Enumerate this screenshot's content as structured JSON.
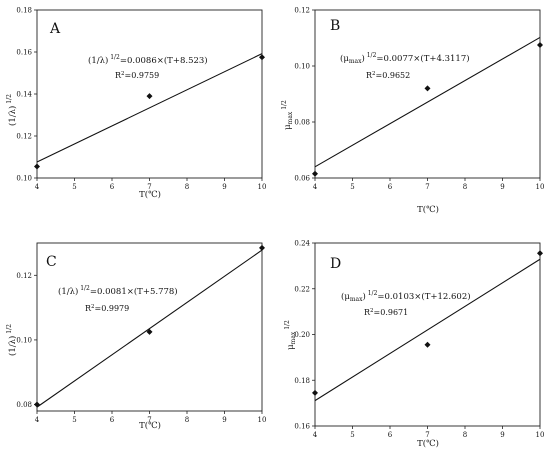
{
  "chart_data": [
    {
      "type": "scatter",
      "panel": "A",
      "xlabel": "T(℃)",
      "ylabel": "(1/λ)",
      "ylabel_sup": "1/2",
      "xlim": [
        4,
        10
      ],
      "ylim": [
        0.1,
        0.18
      ],
      "xticks": [
        4,
        5,
        6,
        7,
        8,
        9,
        10
      ],
      "yticks": [
        "0.10",
        "0.12",
        "0.14",
        "0.16",
        "0.18"
      ],
      "points": [
        [
          4,
          0.1055
        ],
        [
          7,
          0.139
        ],
        [
          10,
          0.1575
        ]
      ],
      "fit": [
        [
          4,
          0.1076
        ],
        [
          10,
          0.1592
        ]
      ],
      "equation": {
        "lhs": "(1/λ)",
        "sup": "1/2",
        "rhs": "=0.0086×(T+8.523)"
      },
      "r2": "=0.9759"
    },
    {
      "type": "scatter",
      "panel": "B",
      "xlabel": "T(℃)",
      "ylabel": "μ",
      "ylabel_sub": "max",
      "ylabel_sup": "1/2",
      "xlim": [
        4,
        10
      ],
      "ylim": [
        0.06,
        0.12
      ],
      "xticks": [
        4,
        5,
        6,
        7,
        8,
        9,
        10
      ],
      "yticks": [
        "0.06",
        "0.08",
        "0.10",
        "0.12"
      ],
      "points": [
        [
          4,
          0.0615
        ],
        [
          7,
          0.092
        ],
        [
          10,
          0.1075
        ]
      ],
      "fit": [
        [
          4,
          0.064
        ],
        [
          10,
          0.1102
        ]
      ],
      "equation": {
        "lhs": "(μ",
        "sub": "max",
        "lhs2": ")",
        "sup": "1/2",
        "rhs": "=0.0077×(T+4.3117)"
      },
      "r2": "=0.9652"
    },
    {
      "type": "scatter",
      "panel": "C",
      "xlabel": "T(℃)",
      "ylabel": "(1/λ)",
      "ylabel_sup": "1/2",
      "xlim": [
        4,
        10
      ],
      "ylim": [
        0.078,
        0.13
      ],
      "xticks": [
        4,
        5,
        6,
        7,
        8,
        9,
        10
      ],
      "yticks": [
        "0.08",
        "0.10",
        "0.12"
      ],
      "points": [
        [
          4,
          0.08
        ],
        [
          7,
          0.1025
        ],
        [
          10,
          0.1285
        ]
      ],
      "fit": [
        [
          4,
          0.0792
        ],
        [
          10,
          0.1278
        ]
      ],
      "equation": {
        "lhs": "(1/λ)",
        "sup": "1/2",
        "rhs": "=0.0081×(T+5.778)"
      },
      "r2": "=0.9979"
    },
    {
      "type": "scatter",
      "panel": "D",
      "xlabel": "T(℃)",
      "ylabel": "μ",
      "ylabel_sub": "max",
      "ylabel_sup": "1/2",
      "xlim": [
        4,
        10
      ],
      "ylim": [
        0.16,
        0.24
      ],
      "xticks": [
        4,
        5,
        6,
        7,
        8,
        9,
        10
      ],
      "yticks": [
        "0.16",
        "0.18",
        "0.20",
        "0.22",
        "0.24"
      ],
      "points": [
        [
          4,
          0.1745
        ],
        [
          7,
          0.1955
        ],
        [
          10,
          0.2355
        ]
      ],
      "fit": [
        [
          4,
          0.1711
        ],
        [
          10,
          0.2329
        ]
      ],
      "equation": {
        "lhs": "(μ",
        "sub": "max",
        "lhs2": ")",
        "sup": "1/2",
        "rhs": "=0.0103×(T+12.602)"
      },
      "r2": "=0.9671"
    }
  ]
}
